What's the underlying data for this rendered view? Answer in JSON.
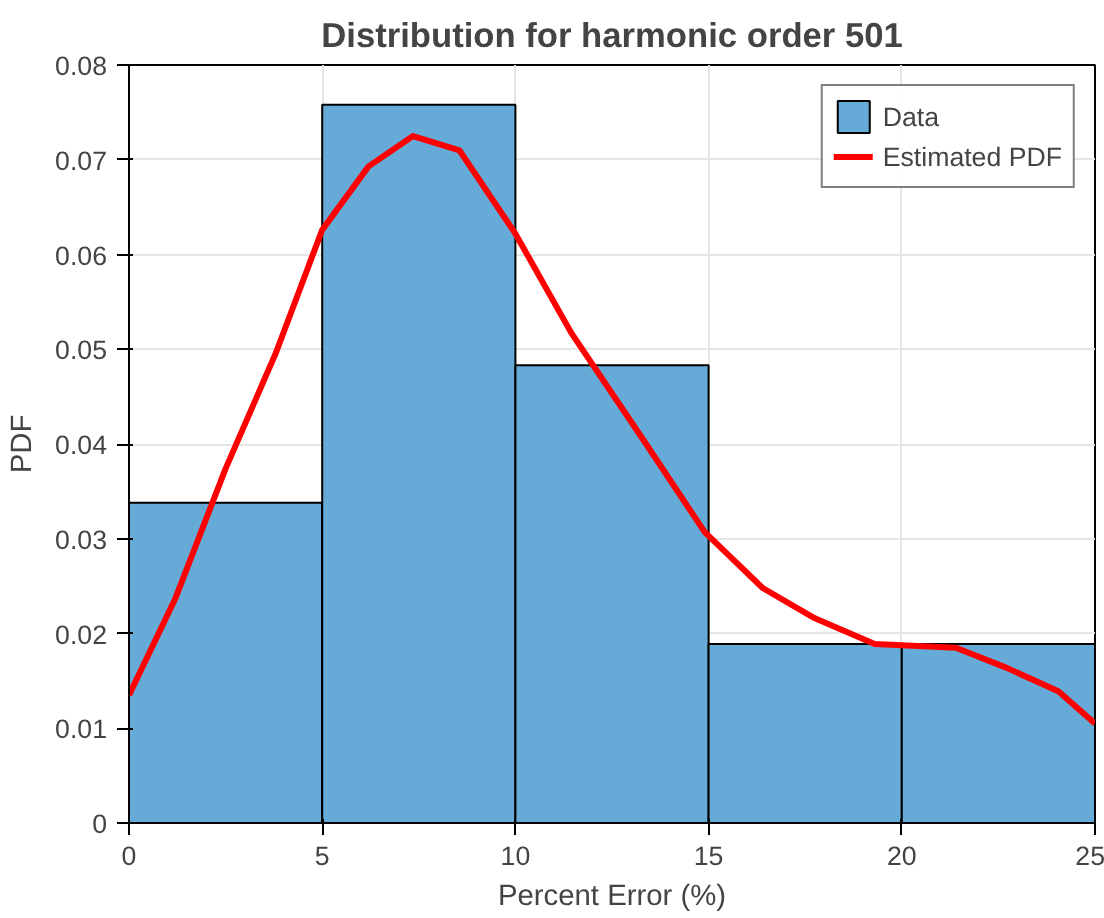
{
  "chart_data": {
    "type": "histogram",
    "title": "Distribution for harmonic order 501",
    "xlabel": "Percent Error (%)",
    "ylabel": "PDF",
    "bins": [
      0,
      5,
      10,
      15,
      20,
      25
    ],
    "series": [
      {
        "name": "Data",
        "color": "#66aad7",
        "values": [
          0.0338,
          0.0758,
          0.0483,
          0.0189,
          0.0189
        ]
      },
      {
        "type": "line",
        "name": "Estimated PDF",
        "color": "#ff0000",
        "x": [
          0,
          1.2,
          2.5,
          3.8,
          5.0,
          6.2,
          7.35,
          8.55,
          10,
          11.45,
          13.3,
          14.9,
          16.4,
          17.75,
          19.3,
          21.4,
          22.7,
          24.05,
          25
        ],
        "values": [
          0.0135,
          0.0237,
          0.0374,
          0.0496,
          0.0626,
          0.0693,
          0.0725,
          0.071,
          0.0622,
          0.0517,
          0.0405,
          0.0307,
          0.0248,
          0.0216,
          0.0189,
          0.0185,
          0.0164,
          0.0139,
          0.0105
        ]
      }
    ],
    "xlim": [
      0,
      25
    ],
    "ylim": [
      0,
      0.08
    ],
    "xticks": [
      0,
      5,
      10,
      15,
      20,
      25
    ],
    "yticks": [
      0,
      0.01,
      0.02,
      0.03,
      0.04,
      0.05,
      0.06,
      0.07,
      0.08
    ],
    "grid": true,
    "legend": "top right",
    "line_style": "solid",
    "marker": "none"
  }
}
